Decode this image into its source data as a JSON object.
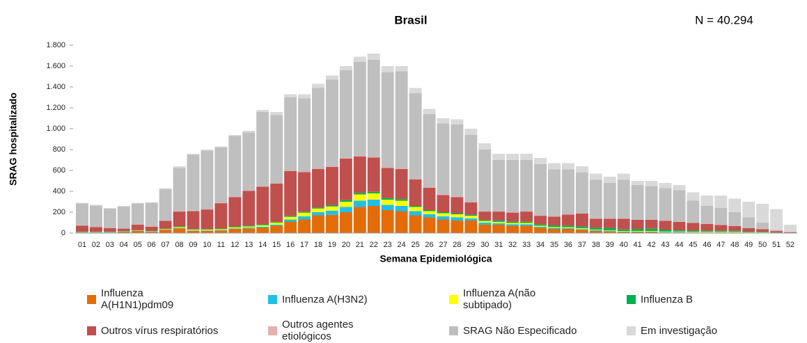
{
  "chart_data": {
    "type": "stacked_bar",
    "title": "Brasil",
    "annotation": "N =  40.294",
    "x_label": "Semana Epidemiológica",
    "y_label": "SRAG hospitalizado",
    "categories": [
      "01",
      "02",
      "03",
      "04",
      "05",
      "06",
      "07",
      "08",
      "09",
      "10",
      "11",
      "12",
      "13",
      "14",
      "15",
      "16",
      "17",
      "18",
      "19",
      "20",
      "21",
      "22",
      "23",
      "24",
      "25",
      "26",
      "27",
      "28",
      "29",
      "30",
      "31",
      "32",
      "33",
      "34",
      "35",
      "36",
      "37",
      "38",
      "39",
      "40",
      "41",
      "42",
      "43",
      "44",
      "45",
      "46",
      "47",
      "48",
      "49",
      "50",
      "51",
      "52"
    ],
    "ylim": [
      0,
      1800
    ],
    "yticks": [
      0,
      200,
      400,
      600,
      800,
      {
        "value": 1000,
        "label": "1.000"
      },
      {
        "value": 1200,
        "label": "1.200"
      },
      {
        "value": 1400,
        "label": "1.400"
      },
      {
        "value": 1600,
        "label": "1.600"
      },
      {
        "value": 1800,
        "label": "1.800"
      }
    ],
    "series": [
      {
        "name": "Influenza A(H1N1)pdm09",
        "color": "#e36c09",
        "values": [
          5,
          5,
          5,
          10,
          20,
          10,
          30,
          45,
          20,
          20,
          25,
          40,
          45,
          50,
          70,
          110,
          130,
          170,
          175,
          200,
          250,
          260,
          220,
          210,
          170,
          150,
          130,
          120,
          120,
          80,
          80,
          70,
          70,
          50,
          40,
          40,
          30,
          20,
          15,
          10,
          10,
          10,
          5,
          5,
          5,
          5,
          5,
          5,
          3,
          3,
          2,
          1
        ]
      },
      {
        "name": "Influenza A(H3N2)",
        "color": "#1ec0e8",
        "values": [
          2,
          2,
          2,
          3,
          3,
          3,
          3,
          5,
          5,
          5,
          5,
          5,
          8,
          10,
          10,
          20,
          30,
          30,
          40,
          50,
          60,
          60,
          50,
          50,
          40,
          30,
          30,
          30,
          20,
          20,
          15,
          15,
          15,
          10,
          10,
          8,
          8,
          8,
          5,
          5,
          5,
          5,
          5,
          5,
          3,
          3,
          3,
          3,
          2,
          2,
          1,
          0
        ]
      },
      {
        "name": "Influenza A(não subtipado)",
        "color": "#ffff00",
        "values": [
          2,
          2,
          2,
          2,
          3,
          3,
          5,
          8,
          8,
          8,
          8,
          10,
          10,
          15,
          20,
          25,
          35,
          35,
          40,
          50,
          60,
          60,
          50,
          50,
          40,
          30,
          30,
          30,
          25,
          15,
          12,
          12,
          12,
          10,
          8,
          8,
          8,
          5,
          5,
          5,
          5,
          5,
          5,
          5,
          5,
          5,
          5,
          5,
          3,
          3,
          1,
          0
        ]
      },
      {
        "name": "Influenza B",
        "color": "#00b050",
        "values": [
          3,
          3,
          3,
          3,
          3,
          3,
          3,
          5,
          5,
          5,
          5,
          8,
          8,
          8,
          8,
          10,
          10,
          10,
          12,
          15,
          15,
          15,
          15,
          15,
          10,
          10,
          10,
          10,
          10,
          10,
          12,
          12,
          12,
          12,
          15,
          15,
          15,
          18,
          22,
          15,
          20,
          22,
          15,
          10,
          10,
          8,
          8,
          8,
          5,
          5,
          2,
          1
        ]
      },
      {
        "name": "Outros vírus respiratórios",
        "color": "#c0504d",
        "values": [
          60,
          45,
          36,
          25,
          53,
          43,
          76,
          143,
          173,
          188,
          243,
          282,
          334,
          362,
          367,
          430,
          380,
          370,
          368,
          399,
          349,
          329,
          289,
          289,
          255,
          215,
          165,
          155,
          120,
          81,
          87,
          87,
          97,
          84,
          84,
          106,
          126,
          86,
          90,
          102,
          87,
          85,
          87,
          82,
          74,
          66,
          56,
          46,
          35,
          25,
          13,
          7
        ]
      },
      {
        "name": "Outros agentes etiológicos",
        "color": "#e6b0b0",
        "values": [
          3,
          3,
          2,
          2,
          3,
          3,
          3,
          4,
          4,
          4,
          4,
          5,
          5,
          5,
          5,
          5,
          5,
          5,
          5,
          6,
          6,
          6,
          6,
          6,
          5,
          5,
          5,
          5,
          5,
          4,
          4,
          4,
          4,
          4,
          3,
          3,
          3,
          3,
          3,
          3,
          3,
          3,
          3,
          3,
          3,
          3,
          3,
          3,
          2,
          2,
          1,
          1
        ]
      },
      {
        "name": "SRAG Não Especificado",
        "color": "#bfbfbf",
        "values": [
          210,
          205,
          185,
          210,
          200,
          225,
          300,
          415,
          535,
          560,
          530,
          580,
          555,
          710,
          650,
          700,
          700,
          770,
          830,
          840,
          900,
          930,
          910,
          930,
          820,
          700,
          680,
          690,
          640,
          590,
          490,
          500,
          490,
          490,
          450,
          430,
          390,
          370,
          340,
          370,
          330,
          320,
          310,
          300,
          210,
          170,
          160,
          130,
          100,
          60,
          10,
          0
        ]
      },
      {
        "name": "Em investigação",
        "color": "#d9d9d9",
        "values": [
          5,
          5,
          5,
          5,
          5,
          5,
          10,
          15,
          10,
          10,
          10,
          10,
          15,
          20,
          30,
          30,
          40,
          40,
          40,
          40,
          50,
          60,
          60,
          50,
          50,
          50,
          50,
          50,
          60,
          60,
          60,
          60,
          60,
          60,
          60,
          60,
          60,
          60,
          60,
          60,
          40,
          50,
          50,
          50,
          80,
          100,
          120,
          130,
          150,
          180,
          200,
          70
        ]
      }
    ]
  }
}
